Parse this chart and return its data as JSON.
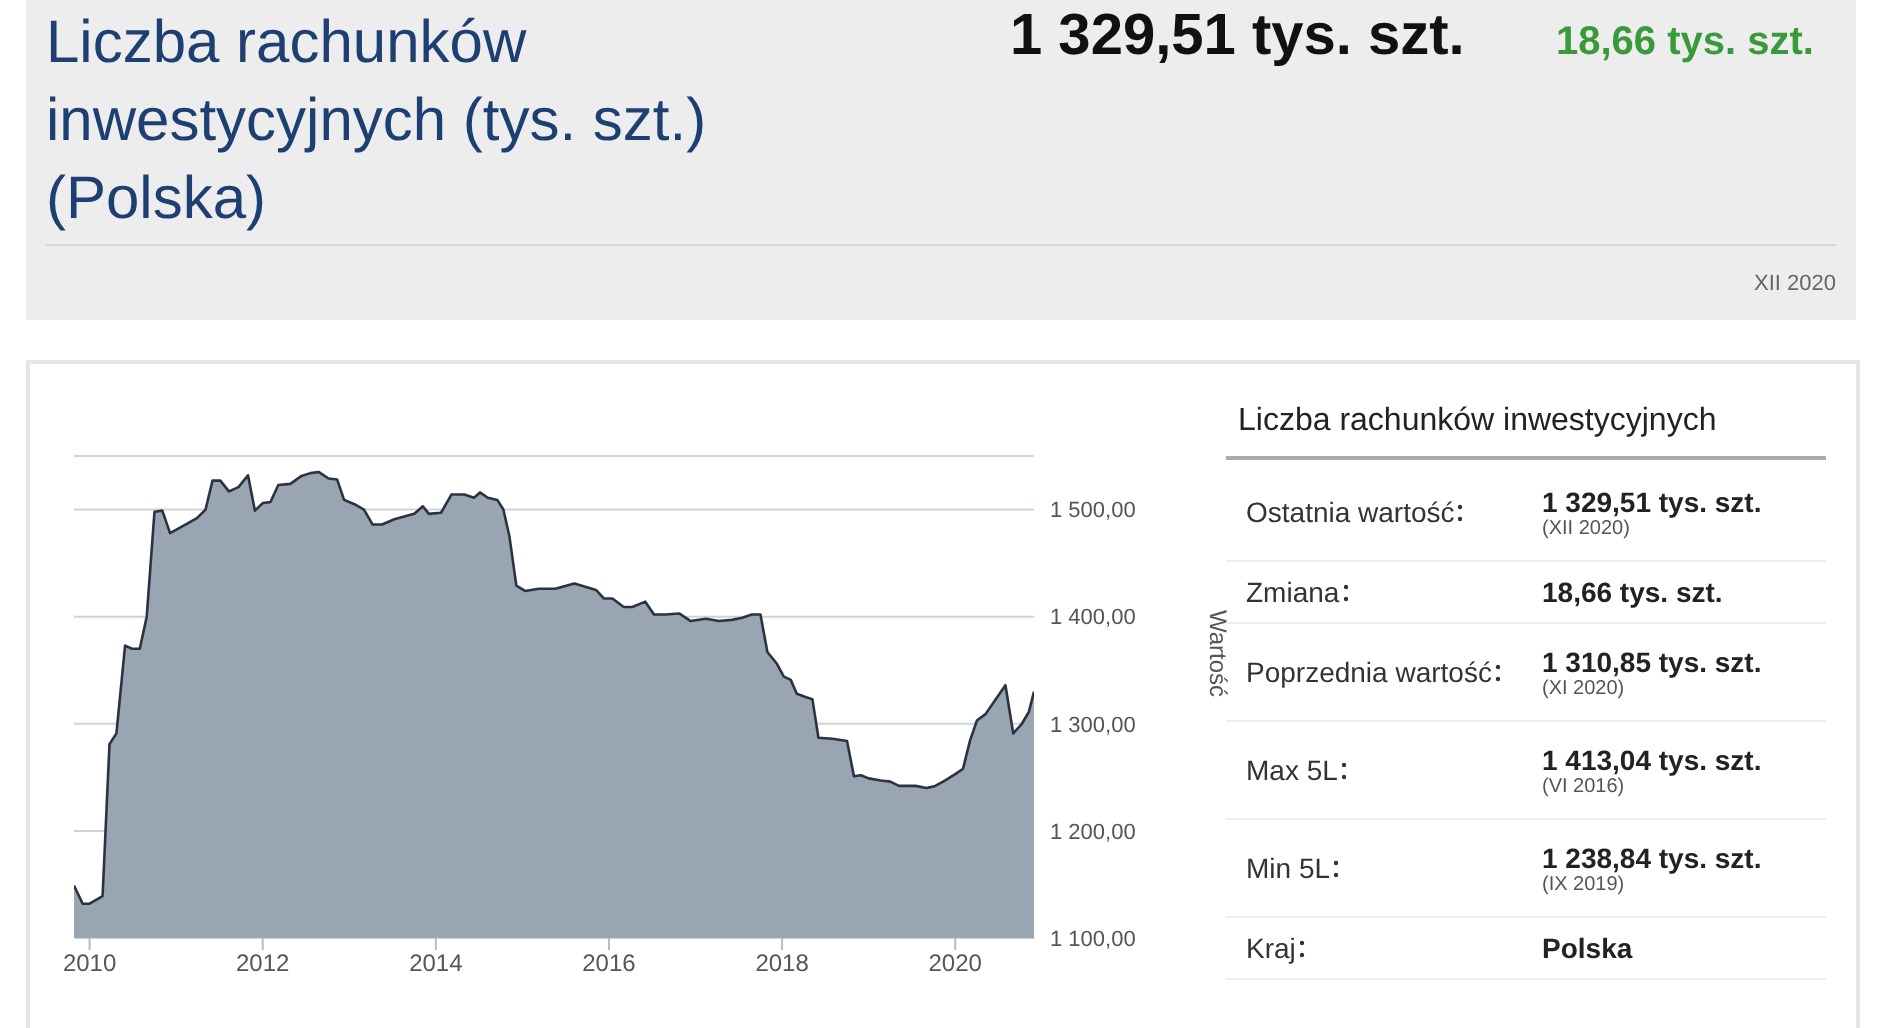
{
  "chart_data": [
    {
      "type": "area",
      "title": "Liczba rachunków inwestycyjnych (tys. szt.) (Polska)",
      "annotations": [
        "1 329,51 tys. szt.",
        "18,66 tys. szt.",
        "XII 2020"
      ],
      "ylabel": "Wartość",
      "grid": "y",
      "legend": false,
      "x": [
        2009.82,
        2009.92,
        2010.0,
        2010.15,
        2010.23,
        2010.31,
        2010.41,
        2010.49,
        2010.58,
        2010.66,
        2010.75,
        2010.84,
        2010.93,
        2011.04,
        2011.24,
        2011.34,
        2011.42,
        2011.51,
        2011.61,
        2011.72,
        2011.83,
        2011.91,
        2012.0,
        2012.09,
        2012.18,
        2012.32,
        2012.44,
        2012.55,
        2012.65,
        2012.76,
        2012.86,
        2012.94,
        2013.06,
        2013.17,
        2013.27,
        2013.38,
        2013.52,
        2013.75,
        2013.85,
        2013.92,
        2014.06,
        2014.18,
        2014.33,
        2014.44,
        2014.51,
        2014.6,
        2014.71,
        2014.78,
        2014.85,
        2014.93,
        2015.03,
        2015.19,
        2015.38,
        2015.6,
        2015.85,
        2015.94,
        2016.04,
        2016.17,
        2016.27,
        2016.42,
        2016.52,
        2016.65,
        2016.81,
        2016.94,
        2017.12,
        2017.27,
        2017.42,
        2017.54,
        2017.65,
        2017.75,
        2017.83,
        2017.94,
        2018.02,
        2018.1,
        2018.17,
        2018.27,
        2018.35,
        2018.42,
        2018.58,
        2018.75,
        2018.83,
        2018.91,
        2019.0,
        2019.14,
        2019.25,
        2019.35,
        2019.54,
        2019.67,
        2019.77,
        2019.88,
        2020.0,
        2020.09,
        2020.17,
        2020.25,
        2020.35,
        2020.46,
        2020.58,
        2020.67,
        2020.77,
        2020.85,
        2020.91
      ],
      "series": [
        {
          "color": "#9aa5b4",
          "values": [
            1149,
            1132,
            1132,
            1139,
            1281,
            1291,
            1373,
            1370,
            1370,
            1400,
            1498,
            1499,
            1478,
            1483,
            1492,
            1500,
            1527,
            1527,
            1517,
            1521,
            1532,
            1499,
            1506,
            1507,
            1523,
            1524,
            1531,
            1534,
            1535,
            1529,
            1528,
            1509,
            1505,
            1500,
            1486,
            1486,
            1491,
            1496,
            1503,
            1496,
            1497,
            1514,
            1514,
            1511,
            1516,
            1511,
            1509,
            1500,
            1475,
            1429,
            1424,
            1426,
            1426,
            1431,
            1425,
            1417,
            1417,
            1409,
            1409,
            1414,
            1402,
            1402,
            1403,
            1396,
            1398,
            1396,
            1397,
            1399,
            1402,
            1402,
            1367,
            1356,
            1344,
            1341,
            1328,
            1325,
            1323,
            1287,
            1286,
            1284,
            1251,
            1252,
            1249,
            1247,
            1246,
            1242,
            1242,
            1240,
            1242,
            1247,
            1253,
            1258,
            1284,
            1303,
            1309,
            1322,
            1336,
            1291,
            1300,
            1311,
            1330
          ]
        }
      ],
      "xlim": [
        2009.82,
        2020.91
      ],
      "xticks": [
        2010,
        2012,
        2014,
        2016,
        2018,
        2020
      ],
      "ylim": [
        1100,
        1550
      ],
      "yticks": [
        {
          "value": 1100,
          "label": "1 100,00"
        },
        {
          "value": 1200,
          "label": "1 200,00"
        },
        {
          "value": 1300,
          "label": "1 300,00"
        },
        {
          "value": 1400,
          "label": "1 400,00"
        },
        {
          "value": 1500,
          "label": "1 500,00"
        }
      ]
    },
    {
      "type": "other",
      "title": "Liczba rachunków inwestycyjnych",
      "categories": [
        "Ostatnia wartość",
        "Zmiana",
        "Poprzednia wartość",
        "Max 5L",
        "Min 5L",
        "Kraj"
      ],
      "value_labels": [
        "1 329,51 tys. szt.\n(XII 2020)",
        "18,66 tys. szt.",
        "1 310,85 tys. szt.\n(XI 2020)",
        "1 413,04 tys. szt.\n(VI 2016)",
        "1 238,84 tys. szt.\n(IX 2019)",
        "Polska"
      ]
    }
  ]
}
